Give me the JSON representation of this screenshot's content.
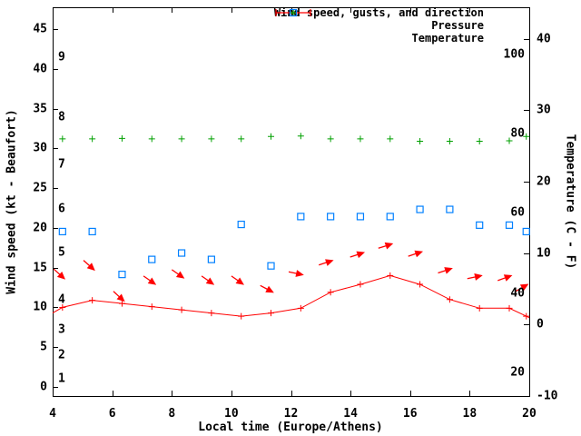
{
  "chart_data": {
    "type": "line",
    "title": "",
    "xlabel": "Local time (Europe/Athens)",
    "ylabel_left": "Wind speed (kt - Beaufort)",
    "ylabel_right": "Temperature (C - F)",
    "x_range": [
      4,
      20
    ],
    "x_ticks": [
      "4",
      "6",
      "8",
      "10",
      "12",
      "14",
      "16",
      "18",
      "20"
    ],
    "left_axis": {
      "unit": "kt",
      "ticks": [
        "0",
        "5",
        "10",
        "15",
        "20",
        "25",
        "30",
        "35",
        "40",
        "45"
      ],
      "tick_values": [
        0,
        5,
        10,
        15,
        20,
        25,
        30,
        35,
        40,
        45
      ],
      "range": [
        0,
        47.7
      ]
    },
    "right_axis": {
      "unit": "C",
      "ticks": [
        "-10",
        "0",
        "10",
        "20",
        "30",
        "40"
      ],
      "tick_values": [
        -10,
        0,
        10,
        20,
        30,
        40
      ],
      "range": [
        -10,
        44.4
      ]
    },
    "beaufort_labels": [
      {
        "label": "1",
        "kt": 1.0
      },
      {
        "label": "2",
        "kt": 4.0
      },
      {
        "label": "3",
        "kt": 7.2
      },
      {
        "label": "4",
        "kt": 11.0
      },
      {
        "label": "5",
        "kt": 16.9
      },
      {
        "label": "6",
        "kt": 22.4
      },
      {
        "label": "7",
        "kt": 28.0
      },
      {
        "label": "8",
        "kt": 33.9
      },
      {
        "label": "9",
        "kt": 41.5
      }
    ],
    "fahrenheit_labels": [
      {
        "label": "20",
        "c": -6.7
      },
      {
        "label": "40",
        "c": 4.4
      },
      {
        "label": "60",
        "c": 15.6
      },
      {
        "label": "80",
        "c": 26.7
      },
      {
        "label": "100",
        "c": 37.8
      }
    ],
    "legend": {
      "position": "top-right",
      "items": [
        {
          "label": "Wind speed, gusts, and direction",
          "color": "#ff0000",
          "marker": "errorbar-plus"
        },
        {
          "label": "Pressure",
          "color": "#00a000",
          "marker": "plus"
        },
        {
          "label": "Temperature",
          "color": "#0080ff",
          "marker": "open-square"
        }
      ]
    },
    "series": [
      {
        "name": "wind_speed",
        "unit": "kt",
        "color": "#ff0000",
        "style": "linespoints",
        "marker": "plus",
        "points": [
          [
            4.0,
            9.3,
            0
          ],
          [
            4.33,
            10.0,
            1
          ],
          [
            5.33,
            10.9,
            1
          ],
          [
            6.33,
            10.5,
            1
          ],
          [
            7.33,
            10.1,
            1
          ],
          [
            8.33,
            9.7,
            1
          ],
          [
            9.33,
            9.3,
            1
          ],
          [
            10.33,
            8.9,
            1
          ],
          [
            11.33,
            9.3,
            1
          ],
          [
            12.33,
            9.9,
            1
          ],
          [
            13.33,
            11.9,
            1
          ],
          [
            14.33,
            12.9,
            1
          ],
          [
            15.33,
            14.0,
            1
          ],
          [
            16.33,
            12.9,
            1
          ],
          [
            17.33,
            11.0,
            1
          ],
          [
            18.33,
            9.9,
            1
          ],
          [
            19.33,
            9.9,
            1
          ],
          [
            19.9,
            8.9,
            1
          ],
          [
            20.0,
            8.7,
            0
          ]
        ]
      },
      {
        "name": "wind_gusts_direction",
        "unit": "kt",
        "color": "#ff0000",
        "style": "arrows",
        "points": [
          [
            4.4,
            13.6,
            42
          ],
          [
            5.4,
            14.7,
            42
          ],
          [
            6.4,
            10.8,
            42
          ],
          [
            7.45,
            12.9,
            35
          ],
          [
            8.4,
            13.7,
            35
          ],
          [
            9.4,
            12.9,
            35
          ],
          [
            10.4,
            12.9,
            35
          ],
          [
            11.4,
            11.9,
            28
          ],
          [
            12.4,
            14.1,
            12
          ],
          [
            13.4,
            15.9,
            -18
          ],
          [
            14.45,
            16.9,
            -18
          ],
          [
            15.4,
            18.0,
            -18
          ],
          [
            16.4,
            17.0,
            -18
          ],
          [
            17.4,
            14.9,
            -18
          ],
          [
            18.4,
            14.0,
            -12
          ],
          [
            19.4,
            14.0,
            -20
          ],
          [
            19.95,
            12.9,
            -30
          ]
        ]
      },
      {
        "name": "pressure",
        "unit": "kt-axis-units",
        "color": "#00a000",
        "style": "points",
        "marker": "plus",
        "points": [
          [
            4.33,
            31.2
          ],
          [
            5.33,
            31.2
          ],
          [
            6.33,
            31.25
          ],
          [
            7.33,
            31.2
          ],
          [
            8.33,
            31.2
          ],
          [
            9.33,
            31.2
          ],
          [
            10.33,
            31.2
          ],
          [
            11.33,
            31.5
          ],
          [
            12.33,
            31.55
          ],
          [
            13.33,
            31.2
          ],
          [
            14.33,
            31.2
          ],
          [
            15.33,
            31.2
          ],
          [
            16.33,
            30.9
          ],
          [
            17.33,
            30.9
          ],
          [
            18.33,
            30.9
          ],
          [
            19.33,
            30.95
          ],
          [
            19.9,
            31.5
          ]
        ]
      },
      {
        "name": "temperature",
        "unit": "C",
        "axis": "right",
        "color": "#0080ff",
        "style": "points",
        "marker": "open-square",
        "points": [
          [
            4.33,
            13.0
          ],
          [
            5.33,
            13.0
          ],
          [
            6.33,
            7.0
          ],
          [
            7.33,
            9.1
          ],
          [
            8.33,
            10.0
          ],
          [
            9.33,
            9.1
          ],
          [
            10.33,
            14.0
          ],
          [
            11.33,
            8.2
          ],
          [
            12.33,
            15.1
          ],
          [
            13.33,
            15.1
          ],
          [
            14.33,
            15.1
          ],
          [
            15.33,
            15.1
          ],
          [
            16.33,
            16.1
          ],
          [
            17.33,
            16.1
          ],
          [
            18.33,
            13.9
          ],
          [
            19.33,
            13.9
          ],
          [
            19.9,
            13.0
          ]
        ]
      }
    ],
    "layout_hints": {
      "grid": false,
      "border": true,
      "tick_direction": "in"
    }
  }
}
